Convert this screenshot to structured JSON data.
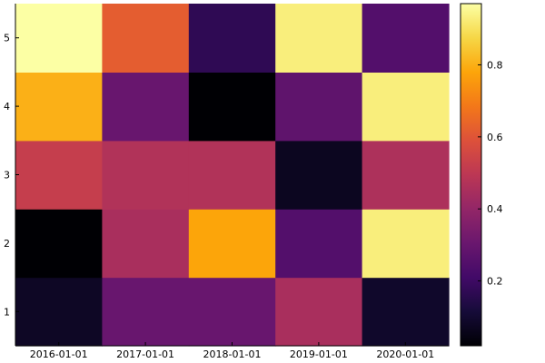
{
  "chart_data": {
    "type": "heatmap",
    "title": "",
    "xlabel": "",
    "ylabel": "",
    "x_categories": [
      "2016-01-01",
      "2017-01-01",
      "2018-01-01",
      "2019-01-01",
      "2020-01-01"
    ],
    "y_categories": [
      "1",
      "2",
      "3",
      "4",
      "5"
    ],
    "values": [
      [
        0.08,
        0.3,
        0.3,
        0.45,
        0.09
      ],
      [
        0.02,
        0.45,
        0.78,
        0.25,
        0.93
      ],
      [
        0.52,
        0.47,
        0.47,
        0.07,
        0.46
      ],
      [
        0.8,
        0.3,
        0.02,
        0.28,
        0.93
      ],
      [
        0.97,
        0.62,
        0.17,
        0.93,
        0.25
      ]
    ],
    "colorbar": {
      "min": 0.02,
      "max": 0.97,
      "ticks": [
        0.2,
        0.4,
        0.6,
        0.8
      ],
      "tick_labels": [
        "0.2",
        "0.4",
        "0.6",
        "0.8"
      ]
    },
    "colormap": "inferno",
    "grid": false,
    "legend": "colorbar-right"
  }
}
